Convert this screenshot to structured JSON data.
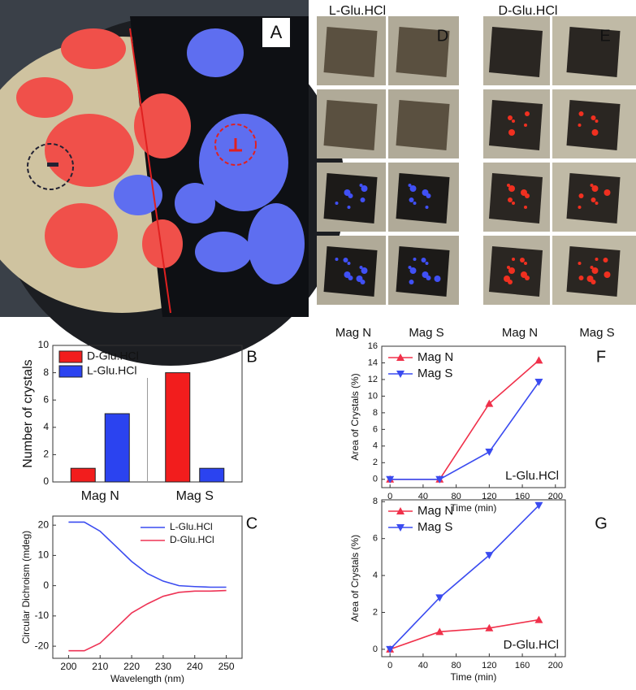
{
  "photo_panels": {
    "a_label": "A",
    "d_label": "D",
    "e_label": "E",
    "d_title": "L-Glu.HCl",
    "e_title": "D-Glu.HCl",
    "col_labels": [
      "Mag N",
      "Mag S",
      "Mag N",
      "Mag S"
    ]
  },
  "chart_data": [
    {
      "type": "bar",
      "label": "B",
      "ylabel": "Number of crystals",
      "categories": [
        "Mag N",
        "Mag S"
      ],
      "series": [
        {
          "name": "D-Glu.HCl",
          "color": "#f21d1d",
          "values": [
            1,
            8
          ]
        },
        {
          "name": "L-Glu.HCl",
          "color": "#2b43f0",
          "values": [
            5,
            1
          ]
        }
      ],
      "ylim": [
        0,
        10
      ],
      "yticks": [
        0,
        2,
        4,
        6,
        8,
        10
      ],
      "legend": "top-left"
    },
    {
      "type": "line",
      "label": "C",
      "xlabel": "Wavelength (nm)",
      "ylabel": "Circular Dichroism (mdeg)",
      "x": [
        200,
        205,
        210,
        215,
        220,
        225,
        230,
        235,
        240,
        245,
        250
      ],
      "series": [
        {
          "name": "L-Glu.HCl",
          "color": "#3a4bf0",
          "values": [
            21,
            21,
            18,
            13,
            8,
            4,
            1.5,
            0,
            -0.3,
            -0.5,
            -0.5
          ]
        },
        {
          "name": "D-Glu.HCl",
          "color": "#ee3355",
          "values": [
            -21.5,
            -21.5,
            -19,
            -14,
            -9,
            -6,
            -3.5,
            -2.2,
            -1.8,
            -1.8,
            -1.6
          ]
        }
      ],
      "xlim": [
        195,
        255
      ],
      "xticks": [
        200,
        210,
        220,
        230,
        240,
        250
      ],
      "ylim": [
        -24,
        23
      ],
      "yticks": [
        -20,
        -10,
        0,
        10,
        20
      ],
      "legend": "top-right"
    },
    {
      "type": "line",
      "label": "F",
      "xlabel": "Time (min)",
      "ylabel": "Area of Crystals (%)",
      "annotation": "L-Glu.HCl",
      "x": [
        0,
        60,
        120,
        180
      ],
      "series": [
        {
          "name": "Mag N",
          "color": "#f0304a",
          "marker": "triangle-up",
          "values": [
            0,
            0,
            9.1,
            14.3
          ]
        },
        {
          "name": "Mag S",
          "color": "#3a4bf0",
          "marker": "triangle-down",
          "values": [
            0,
            0,
            3.3,
            11.7
          ]
        }
      ],
      "xlim": [
        -10,
        212
      ],
      "xticks": [
        0,
        40,
        80,
        120,
        160,
        200
      ],
      "ylim": [
        -1,
        16
      ],
      "yticks": [
        0,
        2,
        4,
        6,
        8,
        10,
        12,
        14,
        16
      ],
      "legend": "top-left"
    },
    {
      "type": "line",
      "label": "G",
      "xlabel": "Time (min)",
      "ylabel": "Area of Crystals (%)",
      "annotation": "D-Glu.HCl",
      "x": [
        0,
        60,
        120,
        180
      ],
      "series": [
        {
          "name": "Mag N",
          "color": "#f0304a",
          "marker": "triangle-up",
          "values": [
            0,
            0.95,
            1.15,
            1.6
          ]
        },
        {
          "name": "Mag S",
          "color": "#3a4bf0",
          "marker": "triangle-down",
          "values": [
            0,
            2.8,
            5.1,
            7.8
          ]
        }
      ],
      "xlim": [
        -10,
        212
      ],
      "xticks": [
        0,
        40,
        80,
        120,
        160,
        200
      ],
      "ylim": [
        -0.4,
        8.1
      ],
      "yticks": [
        0,
        2,
        4,
        6,
        8
      ],
      "legend": "top-left"
    }
  ]
}
